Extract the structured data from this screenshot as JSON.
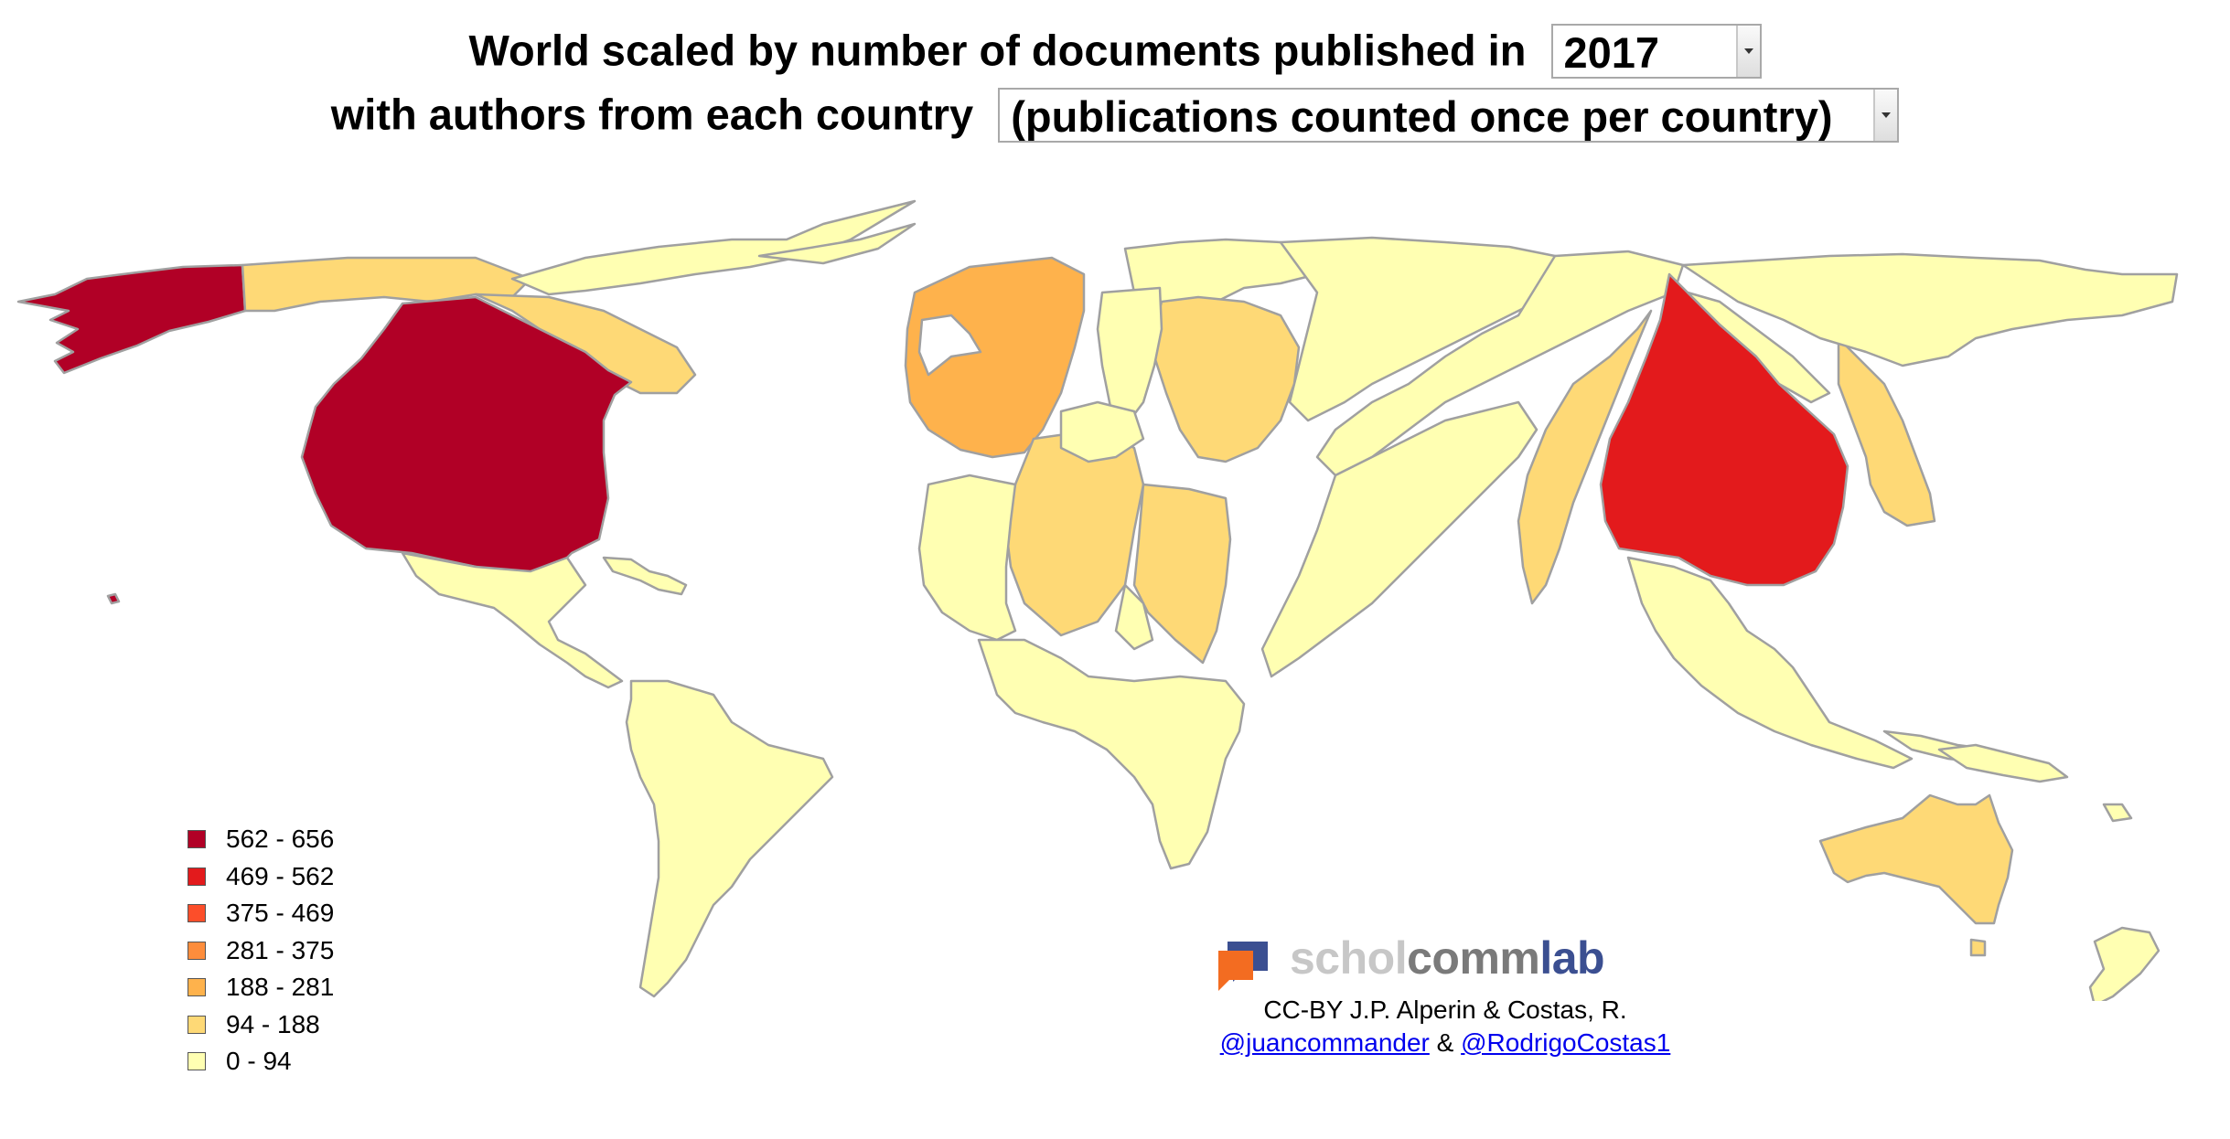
{
  "title": {
    "line1_text": "World scaled by number of documents published in",
    "year_select": "2017",
    "line2_text": "with authors from each country",
    "count_select": "(publications counted once per country)"
  },
  "legend": [
    {
      "label": "562 - 656",
      "color": "#b10026"
    },
    {
      "label": "469 - 562",
      "color": "#e31a1c"
    },
    {
      "label": "375 - 469",
      "color": "#fc4e2a"
    },
    {
      "label": "281 - 375",
      "color": "#fd8d3c"
    },
    {
      "label": "188 - 281",
      "color": "#feb24c"
    },
    {
      "label": "94 - 188",
      "color": "#fed976"
    },
    {
      "label": "0 - 94",
      "color": "#ffffb2"
    }
  ],
  "brand": {
    "part1": "schol",
    "part2": "comm",
    "part3": "lab",
    "icon": "speech-bubbles-icon"
  },
  "credit": {
    "text": "CC-BY J.P. Alperin & Costas, R.",
    "link1": "@juancommander",
    "amp": "&",
    "link2": "@RodrigoCostas1"
  },
  "colors": {
    "border": "#a0a0a0",
    "link": "#0000ee"
  }
}
